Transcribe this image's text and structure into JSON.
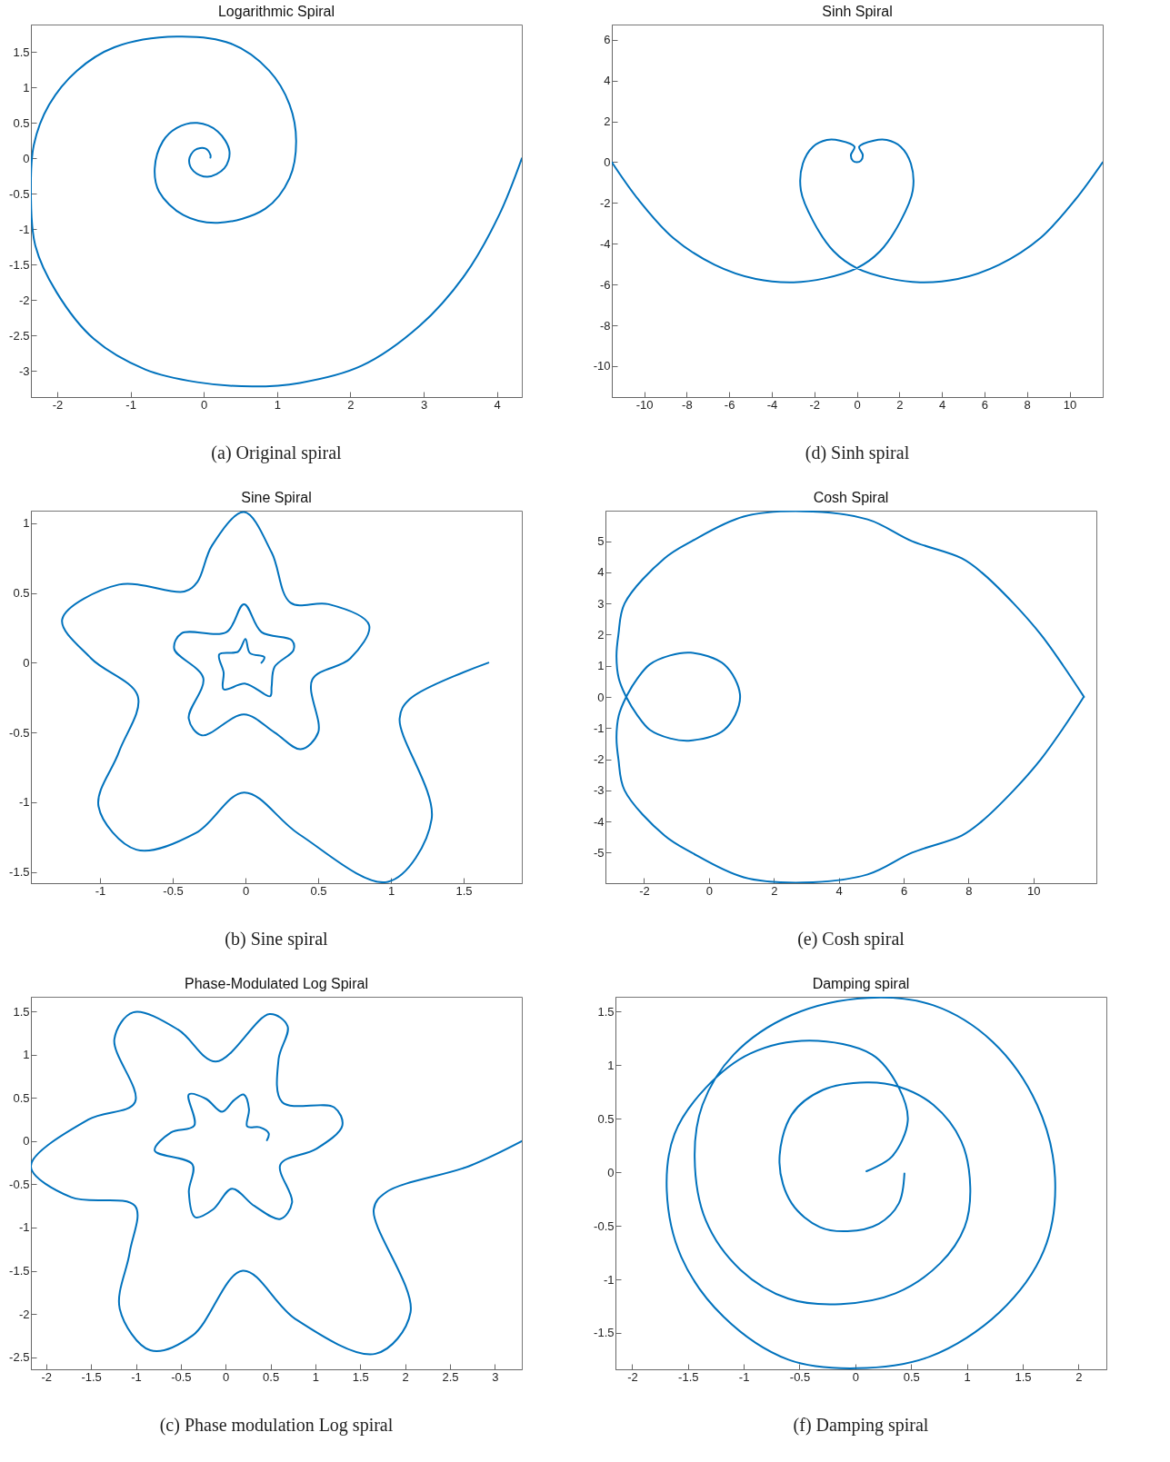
{
  "chart_data": [
    {
      "type": "line",
      "title": "Logarithmic Spiral",
      "annotations": [
        "(a) Original spiral"
      ],
      "xlim": [
        -2.36,
        4.34
      ],
      "ylim": [
        -3.37,
        1.89
      ],
      "xticks": [
        -2,
        -1,
        0,
        1,
        2,
        3,
        4
      ],
      "yticks": [
        -3,
        -2.5,
        -2,
        -1.5,
        -1,
        -0.5,
        0,
        0.5,
        1,
        1.5
      ],
      "series": [
        {
          "color": "#0072bd",
          "x": [
            0.09,
            0.09,
            0.02,
            -0.12,
            -0.2,
            -0.14,
            0.05,
            0.28,
            0.35,
            0.19,
            -0.09,
            -0.37,
            -0.56,
            -0.67,
            -0.61,
            -0.28,
            0.19,
            0.84,
            1.17,
            1.26,
            1.17,
            0.89,
            0.37,
            -0.37,
            -1.22,
            -1.73,
            -2.11,
            -2.32,
            -2.36,
            -2.3,
            -2.01,
            -1.5,
            -0.8,
            -0.09,
            0.66,
            1.31,
            2.15,
            2.95,
            3.56,
            4.03,
            4.34
          ],
          "values": [
            0.01,
            0.05,
            0.14,
            0.12,
            -0.02,
            -0.18,
            -0.26,
            -0.14,
            0.1,
            0.38,
            0.5,
            0.43,
            0.24,
            -0.14,
            -0.47,
            -0.8,
            -0.91,
            -0.71,
            -0.28,
            0.24,
            0.76,
            1.24,
            1.62,
            1.72,
            1.57,
            1.24,
            0.76,
            0.19,
            -0.52,
            -1.23,
            -1.89,
            -2.55,
            -2.98,
            -3.16,
            -3.22,
            -3.17,
            -2.93,
            -2.36,
            -1.65,
            -0.8,
            0
          ]
        }
      ]
    },
    {
      "type": "line",
      "title": "Sinh Spiral",
      "annotations": [
        "(d) Sinh spiral"
      ],
      "xlim": [
        -11.52,
        11.56
      ],
      "ylim": [
        -11.52,
        6.75
      ],
      "xticks": [
        -10,
        -8,
        -6,
        -4,
        -2,
        0,
        2,
        4,
        6,
        8,
        10
      ],
      "yticks": [
        -10,
        -8,
        -6,
        -4,
        -2,
        0,
        2,
        4,
        6
      ],
      "series": [
        {
          "color": "#0072bd",
          "x": [
            -11.52,
            -10.26,
            -8.64,
            -6.69,
            -4.75,
            -2.97,
            -1.51,
            0,
            1.09,
            2.06,
            2.63,
            2.54,
            2.06,
            1.41,
            0.8,
            0.11,
            0.28,
            0.19,
            0,
            -0.19,
            -0.28,
            -0.11,
            -0.8,
            -1.41,
            -2.06,
            -2.54,
            -2.63,
            -2.06,
            -1.09,
            0,
            1.51,
            2.97,
            4.75,
            6.69,
            8.64,
            10.26,
            11.56
          ],
          "values": [
            0,
            -1.85,
            -3.71,
            -5.03,
            -5.73,
            -5.89,
            -5.7,
            -5.2,
            -4.37,
            -2.88,
            -1.39,
            -0.07,
            0.76,
            1.09,
            1.06,
            0.76,
            0.35,
            0.07,
            0,
            0.07,
            0.35,
            0.76,
            1.06,
            1.09,
            0.76,
            -0.07,
            -1.39,
            -2.88,
            -4.37,
            -5.2,
            -5.7,
            -5.89,
            -5.73,
            -5.03,
            -3.71,
            -1.85,
            0
          ]
        }
      ]
    },
    {
      "type": "line",
      "title": "Sine Spiral",
      "annotations": [
        "(b) Sine spiral"
      ],
      "xlim": [
        -1.475,
        1.9
      ],
      "ylim": [
        -1.58,
        1.09
      ],
      "xticks": [
        -1,
        -0.5,
        0,
        0.5,
        1,
        1.5
      ],
      "yticks": [
        -1.5,
        -1,
        -0.5,
        0,
        0.5,
        1
      ],
      "series": [
        {
          "color": "#0072bd",
          "x": [
            0.11,
            0.13,
            0.03,
            0,
            -0.05,
            -0.18,
            -0.15,
            -0.15,
            0,
            0.17,
            0.18,
            0.2,
            0.33,
            0.32,
            0.11,
            -0.01,
            -0.13,
            -0.44,
            -0.49,
            -0.29,
            -0.39,
            -0.3,
            -0.01,
            0.2,
            0.38,
            0.5,
            0.46,
            0.72,
            0.85,
            0.57,
            0.31,
            0.18,
            -0.01,
            -0.23,
            -0.33,
            -0.42,
            -0.87,
            -1.26,
            -1.06,
            -0.74,
            -0.87,
            -1.01,
            -0.75,
            -0.34,
            -0.01,
            0.37,
            0.98,
            1.28,
            1.06,
            1.13,
            1.67
          ],
          "values": [
            0,
            0.04,
            0.07,
            0.17,
            0.08,
            0.06,
            -0.07,
            -0.19,
            -0.15,
            -0.24,
            -0.17,
            -0.03,
            0.09,
            0.16,
            0.22,
            0.42,
            0.22,
            0.21,
            0.1,
            -0.11,
            -0.4,
            -0.52,
            -0.37,
            -0.5,
            -0.62,
            -0.5,
            -0.12,
            0.03,
            0.27,
            0.42,
            0.43,
            0.79,
            1.08,
            0.84,
            0.58,
            0.51,
            0.56,
            0.31,
            0.03,
            -0.24,
            -0.64,
            -1.03,
            -1.34,
            -1.22,
            -0.93,
            -1.23,
            -1.57,
            -1.12,
            -0.4,
            -0.26,
            0
          ]
        }
      ]
    },
    {
      "type": "line",
      "title": "Cosh Spiral",
      "annotations": [
        "(e) Cosh spiral"
      ],
      "xlim": [
        -3.19,
        11.94
      ],
      "ylim": [
        -5.98,
        5.98
      ],
      "xticks": [
        -2,
        0,
        2,
        4,
        6,
        8,
        10
      ],
      "yticks": [
        -5,
        -4,
        -3,
        -2,
        -1,
        0,
        1,
        2,
        3,
        4,
        5
      ],
      "series": [
        {
          "color": "#0072bd",
          "x": [
            11.56,
            10.92,
            10.23,
            9.39,
            8.4,
            7.79,
            6.26,
            4.89,
            2.9,
            1.07,
            -0.53,
            -1.37,
            -2.6,
            -2.79,
            -2.85,
            -2.78,
            -2.55,
            -2.2,
            -1.83,
            -1.2,
            -0.56,
            0.47,
            0.96,
            0.47,
            -0.56,
            -1.2,
            -1.83,
            -2.2,
            -2.55,
            -2.78,
            -2.85,
            -2.79,
            -2.6,
            -1.37,
            -0.53,
            1.07,
            2.9,
            4.89,
            6.26,
            7.79,
            8.4,
            9.39,
            10.23,
            10.92,
            11.55
          ],
          "values": [
            0,
            1,
            2,
            3,
            4,
            4.45,
            5,
            5.7,
            5.96,
            5.79,
            5,
            4.45,
            3,
            2,
            1.3,
            0.6,
            0,
            -0.6,
            -1.05,
            -1.33,
            -1.4,
            -1.06,
            0,
            1.04,
            1.42,
            1.33,
            1.04,
            0.6,
            0,
            -0.6,
            -1.3,
            -2,
            -3,
            -4.45,
            -5,
            -5.79,
            -5.96,
            -5.7,
            -5,
            -4.45,
            -4,
            -3,
            -2,
            -1,
            0
          ]
        }
      ]
    },
    {
      "type": "line",
      "title": "Phase-Modulated Log Spiral",
      "annotations": [
        "(c) Phase modulation Log spiral"
      ],
      "xlim": [
        -2.17,
        3.3
      ],
      "ylim": [
        -2.64,
        1.67
      ],
      "xticks": [
        -2,
        -1.5,
        -1,
        -0.5,
        0,
        0.5,
        1,
        1.5,
        2,
        2.5,
        3
      ],
      "yticks": [
        -2.5,
        -2,
        -1.5,
        -1,
        -0.5,
        0,
        0.5,
        1,
        1.5
      ],
      "series": [
        {
          "color": "#0072bd",
          "x": [
            0.46,
            0.48,
            0.38,
            0.24,
            0.26,
            0.2,
            0.09,
            -0.04,
            -0.22,
            -0.41,
            -0.35,
            -0.61,
            -0.79,
            -0.37,
            -0.41,
            -0.34,
            -0.14,
            0.07,
            0.32,
            0.61,
            0.74,
            0.61,
            1.01,
            1.3,
            1.21,
            0.63,
            0.59,
            0.69,
            0.49,
            -0.11,
            -0.53,
            -1.03,
            -1.24,
            -1.01,
            -1.53,
            -2.17,
            -1.72,
            -1.01,
            -1.07,
            -1.18,
            -0.84,
            -0.37,
            0.19,
            0.78,
            1.67,
            2.06,
            1.65,
            1.79,
            2.71,
            3.3
          ],
          "values": [
            0.01,
            0.09,
            0.16,
            0.17,
            0.37,
            0.54,
            0.47,
            0.34,
            0.49,
            0.54,
            0.18,
            0.1,
            -0.11,
            -0.27,
            -0.59,
            -0.88,
            -0.79,
            -0.55,
            -0.75,
            -0.9,
            -0.71,
            -0.27,
            -0.09,
            0.18,
            0.39,
            0.45,
            0.95,
            1.33,
            1.47,
            0.92,
            1.29,
            1.49,
            1.18,
            0.45,
            0.25,
            -0.29,
            -0.65,
            -0.75,
            -1.29,
            -1.94,
            -2.42,
            -2.25,
            -1.5,
            -2.06,
            -2.46,
            -1.98,
            -0.79,
            -0.59,
            -0.29,
            0
          ]
        }
      ]
    },
    {
      "type": "line",
      "title": "Damping spiral",
      "annotations": [
        "(f) Damping spiral"
      ],
      "xlim": [
        -2.15,
        2.25
      ],
      "ylim": [
        -1.84,
        1.64
      ],
      "xticks": [
        -2,
        -1.5,
        -1,
        -0.5,
        0,
        0.5,
        1,
        1.5,
        2
      ],
      "yticks": [
        -1.5,
        -1,
        -0.5,
        0,
        0.5,
        1,
        1.5
      ],
      "series": [
        {
          "color": "#0072bd",
          "x": [
            0.1,
            0.33,
            0.47,
            0.39,
            0.15,
            -0.41,
            -0.94,
            -1.34,
            -1.62,
            -1.69,
            -1.56,
            -1.18,
            -0.6,
            0.01,
            0.67,
            1.29,
            1.69,
            1.79,
            1.63,
            1.23,
            0.7,
            0.11,
            -0.57,
            -1.09,
            -1.37,
            -1.44,
            -1.34,
            -1.03,
            -0.6,
            -0.13,
            0.36,
            0.76,
            0.98,
            1.03,
            0.95,
            0.7,
            0.39,
            0.1,
            -0.29,
            -0.57,
            -0.68,
            -0.57,
            -0.32,
            -0.07,
            0.21,
            0.39,
            0.44
          ],
          "values": [
            0.01,
            0.15,
            0.48,
            0.79,
            1.1,
            1.23,
            1.11,
            0.79,
            0.36,
            -0.17,
            -0.79,
            -1.35,
            -1.75,
            -1.83,
            -1.72,
            -1.31,
            -0.73,
            -0.05,
            0.63,
            1.22,
            1.56,
            1.63,
            1.47,
            1.1,
            0.63,
            0.14,
            -0.45,
            -0.91,
            -1.18,
            -1.23,
            -1.13,
            -0.85,
            -0.51,
            -0.14,
            0.29,
            0.63,
            0.8,
            0.84,
            0.77,
            0.54,
            0.09,
            -0.29,
            -0.51,
            -0.55,
            -0.48,
            -0.29,
            -0.01
          ]
        }
      ]
    }
  ]
}
